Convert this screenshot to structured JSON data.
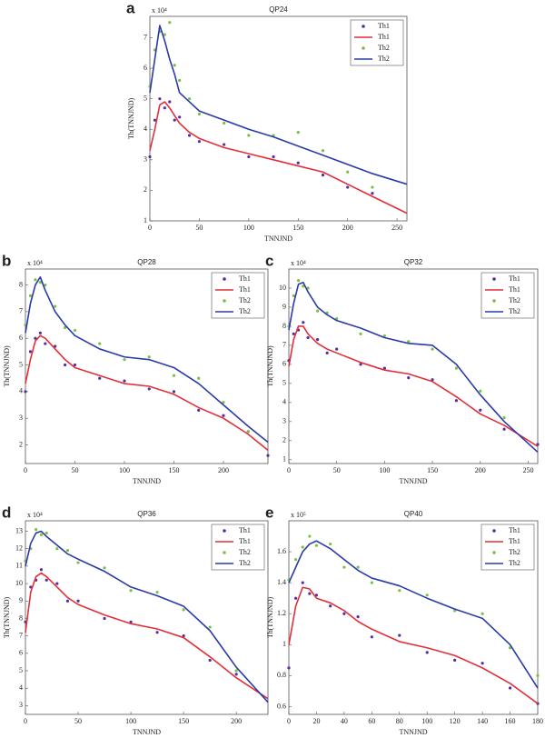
{
  "chart_data": [
    {
      "type": "line",
      "label": "a",
      "title": "QP24",
      "multiplier": "x 10⁴",
      "ylabel": "Th(TNNJND)",
      "xlabel": "TNNJND",
      "legend": "upper right",
      "x": [
        0,
        5,
        10,
        15,
        20,
        25,
        30,
        40,
        50,
        75,
        100,
        125,
        150,
        175,
        200,
        225,
        260
      ],
      "xlim": [
        0,
        260
      ],
      "ylim": [
        1,
        7.7
      ],
      "xticks": [
        0,
        50,
        100,
        150,
        200,
        250
      ],
      "yticks": [
        1,
        2,
        3,
        4,
        5,
        6,
        7
      ],
      "series": [
        {
          "name": "Th1",
          "mode": "markers",
          "color": "#5a2ca0",
          "values": [
            3.1,
            4.3,
            5.0,
            4.7,
            4.9,
            4.3,
            4.4,
            3.8,
            3.6,
            3.5,
            3.1,
            3.1,
            2.9,
            2.5,
            2.1,
            1.9,
            null
          ]
        },
        {
          "name": "Th1",
          "mode": "lines",
          "color": "#e0303a",
          "values": [
            3.3,
            4.0,
            4.8,
            4.9,
            4.7,
            4.45,
            4.2,
            3.9,
            3.7,
            3.4,
            3.2,
            3.0,
            2.8,
            2.6,
            2.2,
            1.8,
            1.25
          ]
        },
        {
          "name": "Th2",
          "mode": "markers",
          "color": "#7ac142",
          "values": [
            5.4,
            6.6,
            7.2,
            7.1,
            7.5,
            6.1,
            5.6,
            5.0,
            4.5,
            4.2,
            3.8,
            3.8,
            3.9,
            3.3,
            2.6,
            2.1,
            null
          ]
        },
        {
          "name": "Th2",
          "mode": "lines",
          "color": "#2a3aa8",
          "values": [
            5.2,
            6.3,
            7.4,
            6.9,
            6.3,
            5.8,
            5.2,
            4.9,
            4.6,
            4.3,
            4.0,
            3.75,
            3.45,
            3.15,
            2.85,
            2.55,
            2.2
          ]
        }
      ]
    },
    {
      "type": "line",
      "label": "b",
      "title": "QP28",
      "multiplier": "x 10⁴",
      "ylabel": "Th(TNNJND)",
      "xlabel": "TNNJND",
      "legend": "upper right",
      "x": [
        0,
        5,
        10,
        15,
        20,
        30,
        40,
        50,
        75,
        100,
        125,
        150,
        175,
        200,
        225,
        245
      ],
      "xlim": [
        0,
        245
      ],
      "ylim": [
        1.3,
        8.6
      ],
      "xticks": [
        0,
        50,
        100,
        150,
        200
      ],
      "yticks": [
        2,
        3,
        4,
        5,
        6,
        7,
        8
      ],
      "series": [
        {
          "name": "Th1",
          "mode": "markers",
          "color": "#5a2ca0",
          "values": [
            4.0,
            5.5,
            6.0,
            6.2,
            5.8,
            5.7,
            5.0,
            5.0,
            4.5,
            4.4,
            4.1,
            4.0,
            3.3,
            3.1,
            2.5,
            1.6
          ]
        },
        {
          "name": "Th1",
          "mode": "lines",
          "color": "#e0303a",
          "values": [
            4.3,
            5.2,
            5.9,
            6.1,
            6.0,
            5.6,
            5.2,
            4.9,
            4.6,
            4.3,
            4.2,
            3.9,
            3.4,
            3.0,
            2.4,
            1.8
          ]
        },
        {
          "name": "Th2",
          "mode": "markers",
          "color": "#7ac142",
          "values": [
            6.5,
            7.6,
            8.2,
            8.1,
            8.0,
            7.2,
            6.4,
            6.3,
            5.8,
            5.2,
            5.3,
            4.6,
            4.5,
            3.6,
            2.5,
            null
          ]
        },
        {
          "name": "Th2",
          "mode": "lines",
          "color": "#2a3aa8",
          "values": [
            6.2,
            7.3,
            8.0,
            8.3,
            7.8,
            7.0,
            6.5,
            6.1,
            5.6,
            5.3,
            5.2,
            4.9,
            4.3,
            3.5,
            2.7,
            2.1
          ]
        }
      ]
    },
    {
      "type": "line",
      "label": "c",
      "title": "QP32",
      "multiplier": "x 10⁴",
      "ylabel": "Th(TNNJND)",
      "xlabel": "TNNJND",
      "legend": "upper right",
      "x": [
        0,
        5,
        10,
        15,
        20,
        30,
        40,
        50,
        75,
        100,
        125,
        150,
        175,
        200,
        225,
        260
      ],
      "xlim": [
        0,
        260
      ],
      "ylim": [
        0.8,
        11
      ],
      "xticks": [
        0,
        50,
        100,
        150,
        200,
        250
      ],
      "yticks": [
        1,
        2,
        3,
        4,
        5,
        6,
        7,
        8,
        9,
        10
      ],
      "series": [
        {
          "name": "Th1",
          "mode": "markers",
          "color": "#5a2ca0",
          "values": [
            6.2,
            7.6,
            7.8,
            8.2,
            7.4,
            7.3,
            6.6,
            6.8,
            6.0,
            5.8,
            5.3,
            5.2,
            4.1,
            3.6,
            2.6,
            1.8
          ]
        },
        {
          "name": "Th1",
          "mode": "lines",
          "color": "#e0303a",
          "values": [
            5.9,
            7.3,
            8.0,
            8.0,
            7.6,
            7.1,
            6.8,
            6.6,
            6.1,
            5.7,
            5.5,
            5.1,
            4.3,
            3.4,
            2.8,
            1.7
          ]
        },
        {
          "name": "Th2",
          "mode": "markers",
          "color": "#7ac142",
          "values": [
            8.0,
            9.6,
            10.4,
            10.1,
            10.0,
            8.8,
            8.7,
            8.4,
            7.6,
            7.5,
            7.2,
            6.8,
            5.8,
            4.6,
            3.2,
            null
          ]
        },
        {
          "name": "Th2",
          "mode": "lines",
          "color": "#2a3aa8",
          "values": [
            7.8,
            9.2,
            10.2,
            10.3,
            9.8,
            9.0,
            8.6,
            8.3,
            7.9,
            7.4,
            7.1,
            7.0,
            6.0,
            4.4,
            3.0,
            1.4
          ]
        }
      ]
    },
    {
      "type": "line",
      "label": "d",
      "title": "QP36",
      "multiplier": "x 10⁴",
      "ylabel": "Th(TNNJND)",
      "xlabel": "TNNJND",
      "legend": "upper right",
      "x": [
        0,
        5,
        10,
        15,
        20,
        30,
        40,
        50,
        75,
        100,
        125,
        150,
        175,
        200,
        230
      ],
      "xlim": [
        0,
        230
      ],
      "ylim": [
        2.5,
        13.6
      ],
      "xticks": [
        0,
        50,
        100,
        150,
        200
      ],
      "yticks": [
        3,
        4,
        5,
        6,
        7,
        8,
        9,
        10,
        11,
        12,
        13
      ],
      "series": [
        {
          "name": "Th1",
          "mode": "markers",
          "color": "#5a2ca0",
          "values": [
            7.8,
            9.8,
            10.2,
            10.8,
            10.2,
            10.0,
            9.0,
            9.0,
            8.0,
            7.8,
            7.2,
            7.0,
            5.6,
            4.8,
            null
          ]
        },
        {
          "name": "Th1",
          "mode": "lines",
          "color": "#e0303a",
          "values": [
            7.2,
            9.5,
            10.4,
            10.6,
            10.4,
            9.8,
            9.2,
            8.8,
            8.2,
            7.7,
            7.4,
            6.9,
            5.8,
            4.6,
            3.4
          ]
        },
        {
          "name": "Th2",
          "mode": "markers",
          "color": "#7ac142",
          "values": [
            11.3,
            12.0,
            13.1,
            12.8,
            12.9,
            12.0,
            11.9,
            11.2,
            10.9,
            9.6,
            9.5,
            8.5,
            7.5,
            5.0,
            null
          ]
        },
        {
          "name": "Th2",
          "mode": "lines",
          "color": "#2a3aa8",
          "values": [
            11.0,
            12.3,
            12.9,
            13.0,
            12.7,
            12.2,
            11.7,
            11.4,
            10.7,
            9.8,
            9.3,
            8.7,
            7.3,
            5.2,
            3.2
          ]
        }
      ]
    },
    {
      "type": "line",
      "label": "e",
      "title": "QP40",
      "multiplier": "x 10⁵",
      "ylabel": "Th(TNNJND)",
      "xlabel": "TNNJND",
      "legend": "upper right",
      "x": [
        0,
        5,
        10,
        15,
        20,
        30,
        40,
        50,
        60,
        80,
        100,
        120,
        140,
        160,
        180
      ],
      "xlim": [
        0,
        180
      ],
      "ylim": [
        0.55,
        1.8
      ],
      "xticks": [
        0,
        20,
        40,
        60,
        80,
        100,
        120,
        140,
        160,
        180
      ],
      "yticks": [
        0.6,
        0.8,
        1,
        1.2,
        1.4,
        1.6
      ],
      "series": [
        {
          "name": "Th1",
          "mode": "markers",
          "color": "#5a2ca0",
          "values": [
            0.85,
            1.3,
            1.4,
            1.33,
            1.32,
            1.25,
            1.2,
            1.18,
            1.05,
            1.06,
            0.95,
            0.9,
            0.88,
            0.72,
            0.62
          ]
        },
        {
          "name": "Th1",
          "mode": "lines",
          "color": "#e0303a",
          "values": [
            1.0,
            1.25,
            1.37,
            1.36,
            1.3,
            1.27,
            1.22,
            1.15,
            1.1,
            1.02,
            0.98,
            0.93,
            0.85,
            0.75,
            0.62
          ]
        },
        {
          "name": "Th2",
          "mode": "markers",
          "color": "#7ac142",
          "values": [
            1.42,
            1.55,
            1.63,
            1.7,
            1.64,
            1.65,
            1.5,
            1.5,
            1.4,
            1.35,
            1.32,
            1.22,
            1.2,
            0.98,
            0.8
          ]
        },
        {
          "name": "Th2",
          "mode": "lines",
          "color": "#2a3aa8",
          "values": [
            1.4,
            1.5,
            1.6,
            1.65,
            1.67,
            1.62,
            1.55,
            1.48,
            1.43,
            1.38,
            1.3,
            1.23,
            1.17,
            1.0,
            0.72
          ]
        }
      ]
    }
  ]
}
